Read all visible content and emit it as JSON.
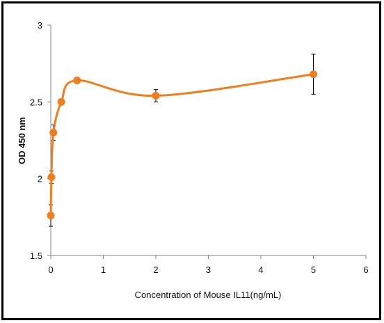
{
  "chart_data": {
    "type": "line",
    "title": "",
    "xlabel": "Concentration of Mouse IL11(ng/mL)",
    "ylabel": "OD 450 nm",
    "xlim": [
      0,
      6
    ],
    "ylim": [
      1.5,
      3
    ],
    "x_ticks": [
      "0",
      "1",
      "2",
      "3",
      "4",
      "5",
      "6"
    ],
    "y_ticks": [
      "1.5",
      "2",
      "2.5",
      "3"
    ],
    "grid": false,
    "legend": "none",
    "series": [
      {
        "color": "#f07d1e",
        "x": [
          0.0,
          0.0125,
          0.05,
          0.2,
          0.5,
          2,
          5
        ],
        "y": [
          1.76,
          2.01,
          2.3,
          2.5,
          2.64,
          2.54,
          2.68
        ],
        "error": [
          0.07,
          0.04,
          0.05,
          0.01,
          0.01,
          0.04,
          0.13
        ]
      }
    ]
  }
}
